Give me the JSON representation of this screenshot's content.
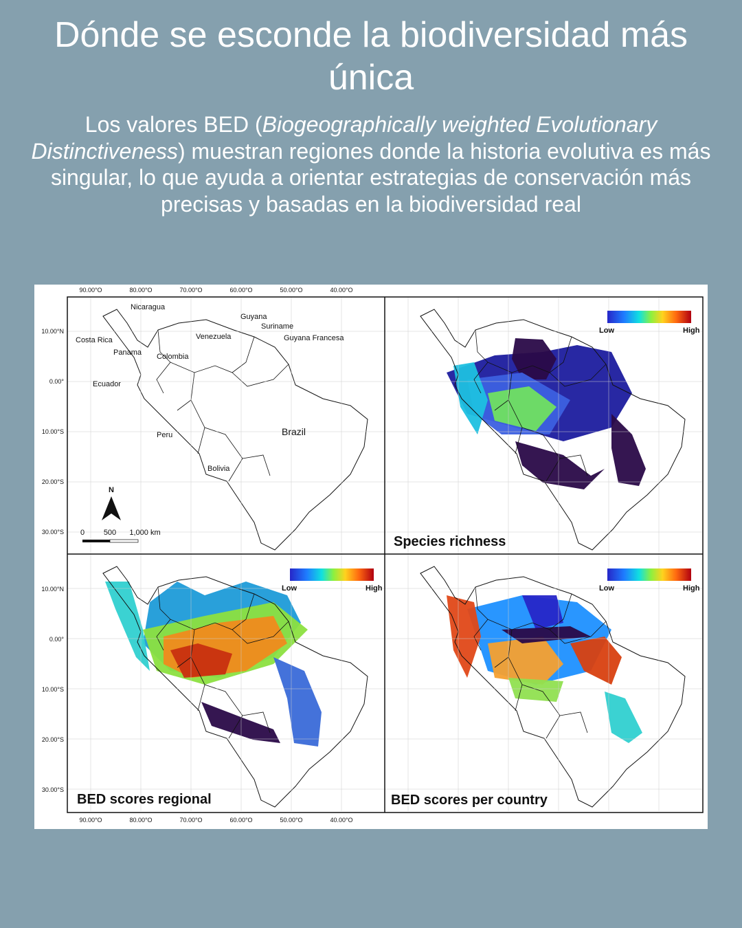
{
  "header": {
    "title": "Dónde se esconde la biodiversidad más única",
    "subtitle": [
      "Los valores BED (",
      "Biogeographically weighted Evolutionary Distinctiveness",
      ") muestran regiones donde la historia evolutiva es más singular, lo que ayuda a orientar estrategias de conservación más precisas y basadas en la biodiversidad real"
    ]
  },
  "figure": {
    "longitude_ticks": [
      "90.00°O",
      "80.00°O",
      "70.00°O",
      "60.00°O",
      "50.00°O",
      "40.00°O"
    ],
    "latitude_ticks": [
      "10.00°N",
      "0.00°",
      "10.00°S",
      "20.00°S",
      "30.00°S"
    ],
    "country_labels": [
      "Nicaragua",
      "Costa Rica",
      "Panama",
      "Colombia",
      "Venezuela",
      "Guyana",
      "Suriname",
      "Guyana Francesa",
      "Ecuador",
      "Peru",
      "Brazil",
      "Bolivia"
    ],
    "scale_bar": {
      "labels": [
        "0",
        "500",
        "1,000 km"
      ],
      "north": "N"
    },
    "legend": {
      "low": "Low",
      "high": "High"
    },
    "panels": [
      "Species richness",
      "BED scores regional",
      "BED scores per country"
    ]
  }
}
